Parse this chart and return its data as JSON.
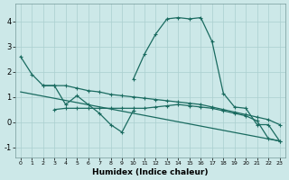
{
  "xlabel": "Humidex (Indice chaleur)",
  "background_color": "#cce8e8",
  "grid_color": "#aacfcf",
  "line_color": "#1a6b60",
  "xlim": [
    -0.5,
    23.5
  ],
  "ylim": [
    -1.4,
    4.7
  ],
  "xticks": [
    0,
    1,
    2,
    3,
    4,
    5,
    6,
    7,
    8,
    9,
    10,
    11,
    12,
    13,
    14,
    15,
    16,
    17,
    18,
    19,
    20,
    21,
    22,
    23
  ],
  "yticks": [
    -1,
    0,
    1,
    2,
    3,
    4
  ],
  "line1": {
    "x": [
      0,
      1,
      2,
      3,
      4,
      5,
      6,
      7,
      8,
      9,
      10,
      11,
      12,
      13,
      14,
      15,
      16,
      17,
      18,
      19,
      20,
      21,
      22,
      23
    ],
    "y": [
      2.6,
      1.9,
      1.45,
      1.45,
      1.45,
      1.35,
      1.25,
      1.2,
      1.1,
      1.05,
      1.0,
      0.95,
      0.9,
      0.85,
      0.8,
      0.75,
      0.7,
      0.6,
      0.5,
      0.4,
      0.3,
      0.2,
      0.1,
      -0.1
    ]
  },
  "line2": {
    "x": [
      0,
      23
    ],
    "y": [
      1.2,
      -0.75
    ]
  },
  "line3": {
    "x": [
      2,
      3,
      4,
      5,
      6,
      7,
      8,
      9,
      10
    ],
    "y": [
      1.45,
      1.45,
      0.7,
      1.05,
      0.7,
      0.35,
      -0.1,
      -0.4,
      0.45
    ]
  },
  "line4": {
    "x": [
      10,
      11,
      12,
      13,
      14,
      15,
      16,
      17,
      18,
      19,
      20,
      21,
      22,
      23
    ],
    "y": [
      1.7,
      2.7,
      3.5,
      4.1,
      4.15,
      4.1,
      4.15,
      3.2,
      1.15,
      0.6,
      0.55,
      -0.1,
      -0.1,
      -0.75
    ]
  },
  "line5": {
    "x": [
      3,
      4,
      5,
      6,
      7,
      8,
      9,
      10,
      11,
      12,
      13,
      14,
      15,
      16,
      17,
      18,
      19,
      20,
      21,
      22,
      23
    ],
    "y": [
      0.5,
      0.55,
      0.55,
      0.55,
      0.55,
      0.55,
      0.55,
      0.55,
      0.55,
      0.6,
      0.65,
      0.7,
      0.65,
      0.6,
      0.55,
      0.45,
      0.35,
      0.25,
      0.05,
      -0.65,
      -0.75
    ]
  }
}
